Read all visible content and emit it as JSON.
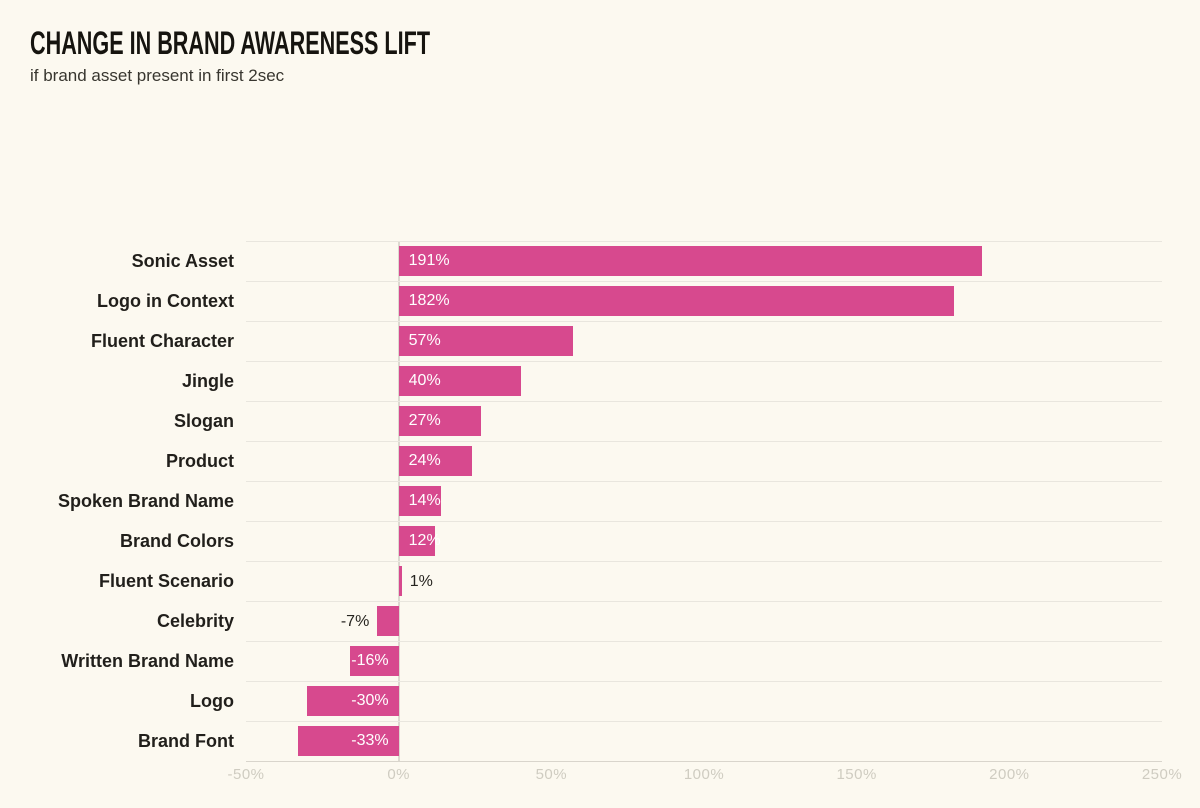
{
  "header": {
    "title": "CHANGE IN BRAND AWARENESS LIFT",
    "subtitle": "if brand asset present in first 2sec"
  },
  "chart_data": {
    "type": "bar",
    "orientation": "horizontal",
    "title": "CHANGE IN BRAND AWARENESS LIFT",
    "subtitle": "if brand asset present in first 2sec",
    "categories": [
      "Sonic Asset",
      "Logo in Context",
      "Fluent Character",
      "Jingle",
      "Slogan",
      "Product",
      "Spoken Brand Name",
      "Brand Colors",
      "Fluent Scenario",
      "Celebrity",
      "Written Brand Name",
      "Logo",
      "Brand Font"
    ],
    "values": [
      191,
      182,
      57,
      40,
      27,
      24,
      14,
      12,
      1,
      -7,
      -16,
      -30,
      -33
    ],
    "value_labels": [
      "191%",
      "182%",
      "57%",
      "40%",
      "27%",
      "24%",
      "14%",
      "12%",
      "1%",
      "-7%",
      "-16%",
      "-30%",
      "-33%"
    ],
    "xlabel": "",
    "ylabel": "",
    "xlim": [
      -50,
      250
    ],
    "x_ticks": [
      {
        "value": -50,
        "label": "-50%"
      },
      {
        "value": 0,
        "label": "0%"
      },
      {
        "value": 50,
        "label": "50%"
      },
      {
        "value": 100,
        "label": "100%"
      },
      {
        "value": 150,
        "label": "150%"
      },
      {
        "value": 200,
        "label": "200%"
      },
      {
        "value": 250,
        "label": "250%"
      }
    ],
    "grid": "horizontal row separators and zero line only",
    "legend": "none",
    "bar_color": "#d7498e",
    "inside_label_color": "#ffffff",
    "outside_label_color": "#26241f",
    "inside_label_threshold_abs": 10
  },
  "colors": {
    "background": "#fcf9f0",
    "bar": "#d7498e",
    "title_text": "#16140f",
    "category_text": "#211f1b",
    "gridline": "#e9e6de",
    "zero_line": "#ddd9d0",
    "axis_tick_text": "#cfccc1"
  }
}
